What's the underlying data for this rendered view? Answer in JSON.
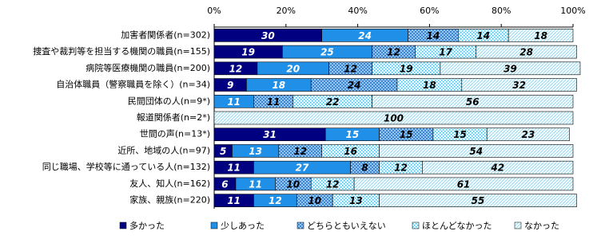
{
  "chart_data": {
    "type": "stacked-bar-horizontal",
    "categories": [
      "加害者関係者(n=302)",
      "捜査や裁判等を担当する機関の職員(n=155)",
      "病院等医療機関の職員(n=200)",
      "自治体職員（警察職員を除く）(n=34)",
      "民間団体の人(n=9*)",
      "報道関係者(n=2*)",
      "世間の声(n=13*)",
      "近所、地域の人(n=97)",
      "同じ職場、学校等に通っている人(n=132)",
      "友人、知人(n=162)",
      "家族、親族(n=220)"
    ],
    "series": [
      {
        "name": "多かった",
        "color": "#000080",
        "values": [
          30,
          19,
          12,
          9,
          null,
          null,
          31,
          5,
          11,
          6,
          11
        ]
      },
      {
        "name": "少しあった",
        "color": "#1f8fe8",
        "values": [
          24,
          25,
          20,
          18,
          11,
          null,
          15,
          13,
          27,
          11,
          12
        ]
      },
      {
        "name": "どちらともいえない",
        "color": "#2f7fd8",
        "values": [
          14,
          12,
          12,
          24,
          11,
          null,
          15,
          12,
          8,
          10,
          10
        ]
      },
      {
        "name": "ほとんどなかった",
        "color": "#46b8e0",
        "values": [
          14,
          17,
          19,
          18,
          22,
          null,
          15,
          16,
          12,
          12,
          13
        ]
      },
      {
        "name": "なかった",
        "color": "#8fd3ea",
        "values": [
          18,
          28,
          39,
          32,
          56,
          100,
          23,
          54,
          42,
          61,
          55
        ]
      }
    ],
    "xlim": [
      0,
      100
    ],
    "xticks": [
      {
        "value": 0,
        "label": "0%"
      },
      {
        "value": 20,
        "label": "20%"
      },
      {
        "value": 40,
        "label": "40%"
      },
      {
        "value": 60,
        "label": "60%"
      },
      {
        "value": 80,
        "label": "80%"
      },
      {
        "value": 100,
        "label": "100%"
      }
    ]
  }
}
